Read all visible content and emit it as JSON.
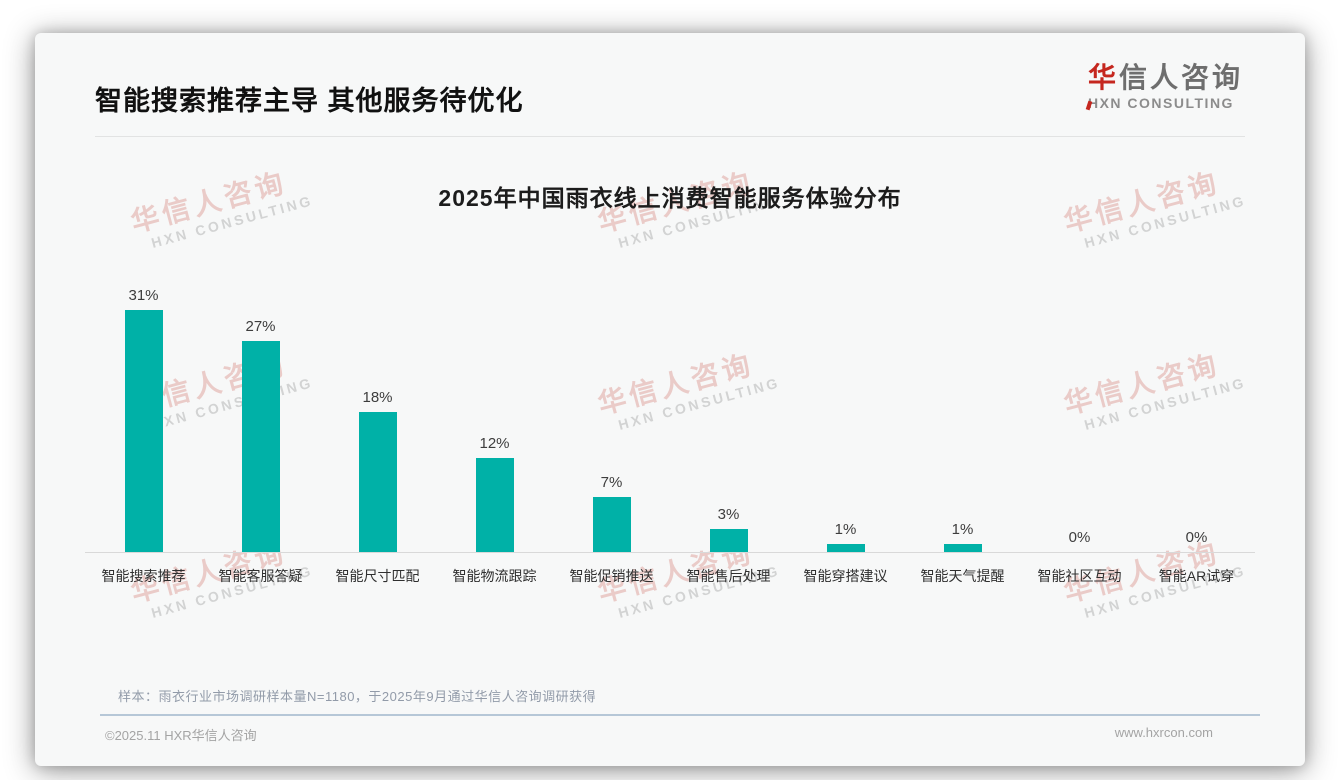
{
  "header": {
    "title": "智能搜索推荐主导 其他服务待优化",
    "logo": {
      "cn_first": "华",
      "cn_rest": "信人咨询",
      "sub_first": "H",
      "sub_rest": "XN CONSULTING",
      "accent_color": "#c5271f"
    }
  },
  "chart_data": {
    "type": "bar",
    "title": "2025年中国雨衣线上消费智能服务体验分布",
    "categories": [
      "智能搜索推荐",
      "智能客服答疑",
      "智能尺寸匹配",
      "智能物流跟踪",
      "智能促销推送",
      "智能售后处理",
      "智能穿搭建议",
      "智能天气提醒",
      "智能社区互动",
      "智能AR试穿"
    ],
    "values": [
      31,
      27,
      18,
      12,
      7,
      3,
      1,
      1,
      0,
      0
    ],
    "unit": "%",
    "bar_color": "#00b1a7",
    "ylim": [
      0,
      33
    ],
    "grid": false,
    "value_labels": true,
    "legend": false,
    "xlabel": "",
    "ylabel": ""
  },
  "note": "样本：雨衣行业市场调研样本量N=1180，于2025年9月通过华信人咨询调研获得",
  "footer": {
    "copyright": "©2025.11 HXR华信人咨询",
    "website": "www.hxrcon.com"
  },
  "watermark": {
    "line1": "华信人咨询",
    "line2": "HXN CONSULTING"
  }
}
